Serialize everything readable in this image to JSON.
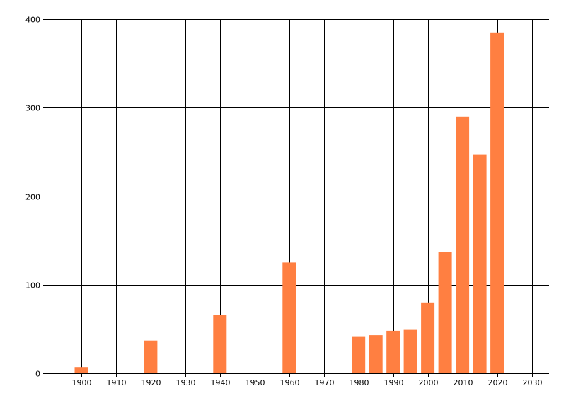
{
  "chart_data": {
    "type": "bar",
    "title": "",
    "xlabel": "",
    "ylabel": "",
    "x": [
      1900,
      1920,
      1940,
      1960,
      1980,
      1985,
      1990,
      1995,
      2000,
      2005,
      2010,
      2015,
      2020
    ],
    "values": [
      7,
      37,
      66,
      125,
      41,
      43,
      48,
      49,
      80,
      137,
      290,
      247,
      385
    ],
    "xlim": [
      1890,
      2035
    ],
    "ylim": [
      0,
      400
    ],
    "x_ticks": [
      1900,
      1910,
      1920,
      1930,
      1940,
      1950,
      1960,
      1970,
      1980,
      1990,
      2000,
      2010,
      2020,
      2030
    ],
    "y_ticks": [
      0,
      100,
      200,
      300,
      400
    ],
    "grid": true,
    "bar_color": "#ff7f41",
    "grid_color": "#000000"
  }
}
